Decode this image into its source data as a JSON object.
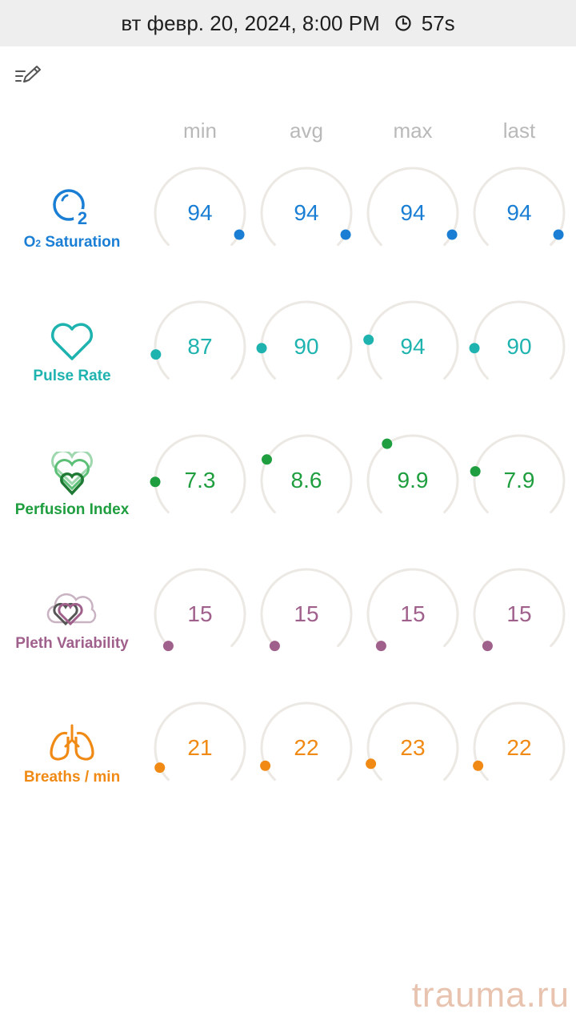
{
  "status_bar": {
    "datetime": "вт февр. 20, 2024, 8:00 PM",
    "duration": "57s"
  },
  "columns": [
    "min",
    "avg",
    "max",
    "last"
  ],
  "metrics": [
    {
      "id": "o2",
      "label_main": "O",
      "label_sub": "2",
      "label_rest": " Saturation",
      "icon": "o2-bubble-icon",
      "color": "#1a7fd4",
      "values": [
        "94",
        "94",
        "94",
        "94"
      ],
      "levels": [
        0.94,
        0.94,
        0.94,
        0.94
      ]
    },
    {
      "id": "pulse",
      "label": "Pulse Rate",
      "icon": "heart-outline-icon",
      "color": "#1fb3b0",
      "values": [
        "87",
        "90",
        "94",
        "90"
      ],
      "levels": [
        0.13,
        0.16,
        0.2,
        0.16
      ]
    },
    {
      "id": "perfusion",
      "label": "Perfusion Index",
      "icon": "layered-hearts-icon",
      "color": "#1e9e3e",
      "values": [
        "7.3",
        "8.6",
        "9.9",
        "7.9"
      ],
      "levels": [
        0.16,
        0.27,
        0.37,
        0.21
      ]
    },
    {
      "id": "pleth",
      "label": "Pleth Variability",
      "icon": "heart-cloud-icon",
      "color": "#a0608c",
      "values": [
        "15",
        "15",
        "15",
        "15"
      ],
      "levels": [
        0.0,
        0.0,
        0.0,
        0.0
      ]
    },
    {
      "id": "breaths",
      "label": "Breaths / min",
      "icon": "lungs-icon",
      "color": "#f08a14",
      "values": [
        "21",
        "22",
        "23",
        "22"
      ],
      "levels": [
        0.07,
        0.08,
        0.09,
        0.08
      ]
    }
  ],
  "watermark": "trauma.ru"
}
